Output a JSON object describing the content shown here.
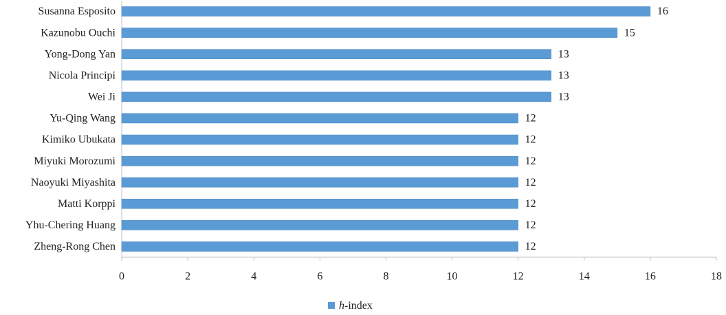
{
  "chart_data": {
    "type": "bar",
    "orientation": "horizontal",
    "categories": [
      "Susanna Esposito",
      "Kazunobu Ouchi",
      "Yong-Dong Yan",
      "Nicola Principi",
      "Wei Ji",
      "Yu-Qing Wang",
      "Kimiko Ubukata",
      "Miyuki Morozumi",
      "Naoyuki Miyashita",
      "Matti Korppi",
      "Yhu-Chering Huang",
      "Zheng-Rong Chen"
    ],
    "series": [
      {
        "name": "h-index",
        "color": "#5b9bd5",
        "values": [
          16,
          15,
          13,
          13,
          13,
          12,
          12,
          12,
          12,
          12,
          12,
          12
        ]
      }
    ],
    "xlim": [
      0,
      18
    ],
    "xticks": [
      0,
      2,
      4,
      6,
      8,
      10,
      12,
      14,
      16,
      18
    ],
    "grid": false,
    "legend": "bottom",
    "data_labels": true
  }
}
